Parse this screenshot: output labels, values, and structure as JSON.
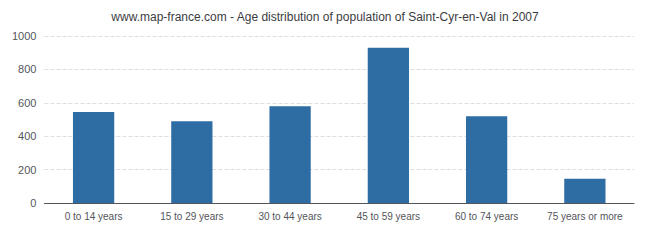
{
  "chart_data": {
    "type": "bar",
    "title": "www.map-france.com - Age distribution of population of Saint-Cyr-en-Val in 2007",
    "categories": [
      "0 to 14 years",
      "15 to 29 years",
      "30 to 44 years",
      "45 to 59 years",
      "60 to 74 years",
      "75 years or more"
    ],
    "values": [
      545,
      490,
      580,
      930,
      520,
      145
    ],
    "color": "#2e6da4",
    "ylim": [
      0,
      1000
    ],
    "yticks": [
      0,
      200,
      400,
      600,
      800,
      1000
    ],
    "grid": true
  }
}
